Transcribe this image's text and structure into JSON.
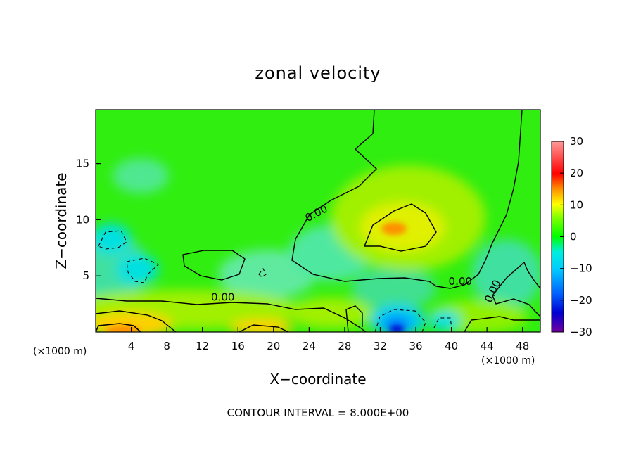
{
  "chart_data": {
    "type": "heatmap",
    "title": "zonal velocity",
    "xlabel": "X−coordinate",
    "ylabel": "Z−coordinate",
    "x_unit": "(×1000 m)",
    "y_unit": "(×1000 m)",
    "xlim": [
      0,
      50
    ],
    "ylim": [
      0,
      19.8
    ],
    "xticks": [
      4,
      8,
      12,
      16,
      20,
      24,
      28,
      32,
      36,
      40,
      44,
      48
    ],
    "yticks": [
      5,
      10,
      15
    ],
    "colorbar": {
      "min": -30,
      "max": 30,
      "ticks": [
        30,
        20,
        10,
        0,
        -10,
        -20,
        -30
      ],
      "colors": [
        "#7000a0",
        "#0000d0",
        "#0060ff",
        "#00ccff",
        "#00eedd",
        "#00ff00",
        "#80ff00",
        "#ffff00",
        "#ff9000",
        "#ff0000",
        "#ff9999"
      ]
    },
    "background_value": 2,
    "features": [
      {
        "name": "surface jet",
        "x": 5,
        "z": 0.3,
        "value": 14
      },
      {
        "name": "surface jet",
        "x": 18,
        "z": 0.2,
        "value": 10
      },
      {
        "name": "upper maximum",
        "x": 33,
        "z": 9.5,
        "value": 12
      },
      {
        "name": "surface minimum",
        "x": 33,
        "z": 0.3,
        "value": -16
      },
      {
        "name": "mid-level minimum",
        "x": 2,
        "z": 8.3,
        "value": -6
      },
      {
        "name": "mid-level minimum",
        "x": 5,
        "z": 5.5,
        "value": -6
      },
      {
        "name": "low-level minimum",
        "x": 40,
        "z": 2,
        "value": -5
      }
    ],
    "contour_labels": [
      {
        "text": "0.00",
        "x": 25,
        "z": 10.3
      },
      {
        "text": "0.00",
        "x": 14.3,
        "z": 2.8
      },
      {
        "text": "0.00",
        "x": 41,
        "z": 4.2
      },
      {
        "text": "0.00",
        "x": 45,
        "z": 3.5
      }
    ],
    "annotation": "CONTOUR INTERVAL = 8.000E+00"
  }
}
